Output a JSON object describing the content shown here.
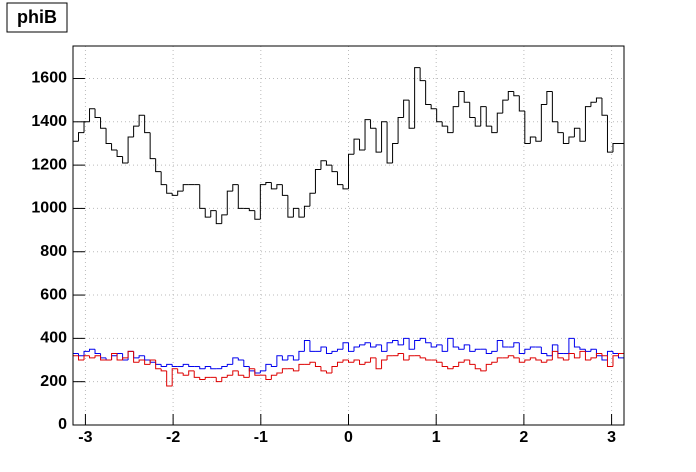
{
  "chart_data": {
    "type": "histogram",
    "title": "phiB",
    "bins": [
      -3.1416,
      -3.0788,
      -3.0159,
      -2.9531,
      -2.8903,
      -2.8274,
      -2.7646,
      -2.7018,
      -2.6389,
      -2.5761,
      -2.5133,
      -2.4504,
      -2.3876,
      -2.3248,
      -2.2619,
      -2.1991,
      -2.1363,
      -2.0735,
      -2.0106,
      -1.9478,
      -1.885,
      -1.8221,
      -1.7593,
      -1.6965,
      -1.6336,
      -1.5708,
      -1.508,
      -1.4451,
      -1.3823,
      -1.3195,
      -1.2566,
      -1.1938,
      -1.131,
      -1.0681,
      -1.0053,
      -0.9425,
      -0.8796,
      -0.8168,
      -0.754,
      -0.6912,
      -0.6283,
      -0.5655,
      -0.5027,
      -0.4398,
      -0.377,
      -0.3142,
      -0.2513,
      -0.1885,
      -0.1257,
      -0.0628,
      0,
      0.0628,
      0.1257,
      0.1885,
      0.2513,
      0.3142,
      0.377,
      0.4398,
      0.5027,
      0.5655,
      0.6283,
      0.6912,
      0.754,
      0.8168,
      0.8796,
      0.9425,
      1.0053,
      1.0681,
      1.131,
      1.1938,
      1.2566,
      1.3195,
      1.3823,
      1.4451,
      1.508,
      1.5708,
      1.6336,
      1.6965,
      1.7593,
      1.8221,
      1.885,
      1.9478,
      2.0106,
      2.0735,
      2.1363,
      2.1991,
      2.2619,
      2.3248,
      2.3876,
      2.4504,
      2.5133,
      2.5761,
      2.6389,
      2.7018,
      2.7646,
      2.8274,
      2.8903,
      2.9531,
      3.0159,
      3.0788,
      3.1416
    ],
    "series": [
      {
        "color": "#000000",
        "values": [
          1310,
          1350,
          1400,
          1460,
          1420,
          1370,
          1300,
          1270,
          1240,
          1210,
          1330,
          1380,
          1430,
          1350,
          1230,
          1170,
          1110,
          1070,
          1060,
          1080,
          1110,
          1110,
          1110,
          1000,
          960,
          990,
          930,
          970,
          1080,
          1110,
          1000,
          1000,
          990,
          950,
          1110,
          1120,
          1090,
          1110,
          1060,
          960,
          1000,
          960,
          1010,
          1070,
          1180,
          1220,
          1200,
          1170,
          1110,
          1090,
          1250,
          1320,
          1270,
          1410,
          1370,
          1260,
          1400,
          1210,
          1300,
          1420,
          1500,
          1370,
          1650,
          1590,
          1480,
          1460,
          1400,
          1380,
          1350,
          1470,
          1540,
          1490,
          1420,
          1380,
          1470,
          1380,
          1350,
          1440,
          1500,
          1540,
          1520,
          1450,
          1300,
          1330,
          1310,
          1480,
          1540,
          1400,
          1350,
          1300,
          1330,
          1370,
          1310,
          1470,
          1490,
          1510,
          1430,
          1260,
          1300,
          1300
        ]
      },
      {
        "color": "#0000ee",
        "values": [
          330,
          320,
          340,
          350,
          330,
          310,
          300,
          320,
          330,
          300,
          340,
          310,
          320,
          300,
          290,
          280,
          270,
          280,
          270,
          270,
          280,
          270,
          270,
          260,
          270,
          260,
          260,
          270,
          280,
          310,
          300,
          270,
          250,
          240,
          250,
          280,
          270,
          320,
          300,
          320,
          300,
          340,
          390,
          340,
          340,
          360,
          330,
          340,
          350,
          380,
          340,
          360,
          370,
          380,
          360,
          370,
          340,
          380,
          390,
          370,
          400,
          350,
          390,
          400,
          380,
          360,
          370,
          340,
          400,
          360,
          350,
          370,
          340,
          350,
          350,
          330,
          340,
          390,
          360,
          360,
          380,
          330,
          350,
          360,
          360,
          330,
          320,
          370,
          330,
          330,
          400,
          360,
          350,
          340,
          350,
          320,
          300,
          340,
          330,
          310
        ]
      },
      {
        "color": "#dd0000",
        "values": [
          320,
          300,
          320,
          310,
          320,
          300,
          300,
          330,
          300,
          310,
          340,
          290,
          300,
          280,
          300,
          260,
          250,
          180,
          260,
          240,
          230,
          250,
          220,
          210,
          220,
          220,
          200,
          220,
          230,
          250,
          230,
          220,
          260,
          230,
          230,
          210,
          230,
          240,
          260,
          260,
          250,
          280,
          280,
          290,
          270,
          250,
          240,
          270,
          290,
          300,
          290,
          300,
          280,
          290,
          310,
          260,
          300,
          320,
          320,
          330,
          300,
          320,
          320,
          310,
          300,
          300,
          290,
          270,
          260,
          270,
          290,
          300,
          280,
          260,
          250,
          280,
          290,
          310,
          310,
          320,
          310,
          290,
          300,
          310,
          300,
          290,
          300,
          340,
          310,
          300,
          330,
          310,
          340,
          300,
          310,
          330,
          320,
          270,
          320,
          330
        ]
      }
    ],
    "xlim": [
      -3.1416,
      3.1416
    ],
    "xticks": [
      -3,
      -2,
      -1,
      0,
      1,
      2,
      3
    ],
    "ylim": [
      0,
      1750
    ],
    "yticks": [
      0,
      200,
      400,
      600,
      800,
      1000,
      1200,
      1400,
      1600
    ],
    "grid": true
  }
}
